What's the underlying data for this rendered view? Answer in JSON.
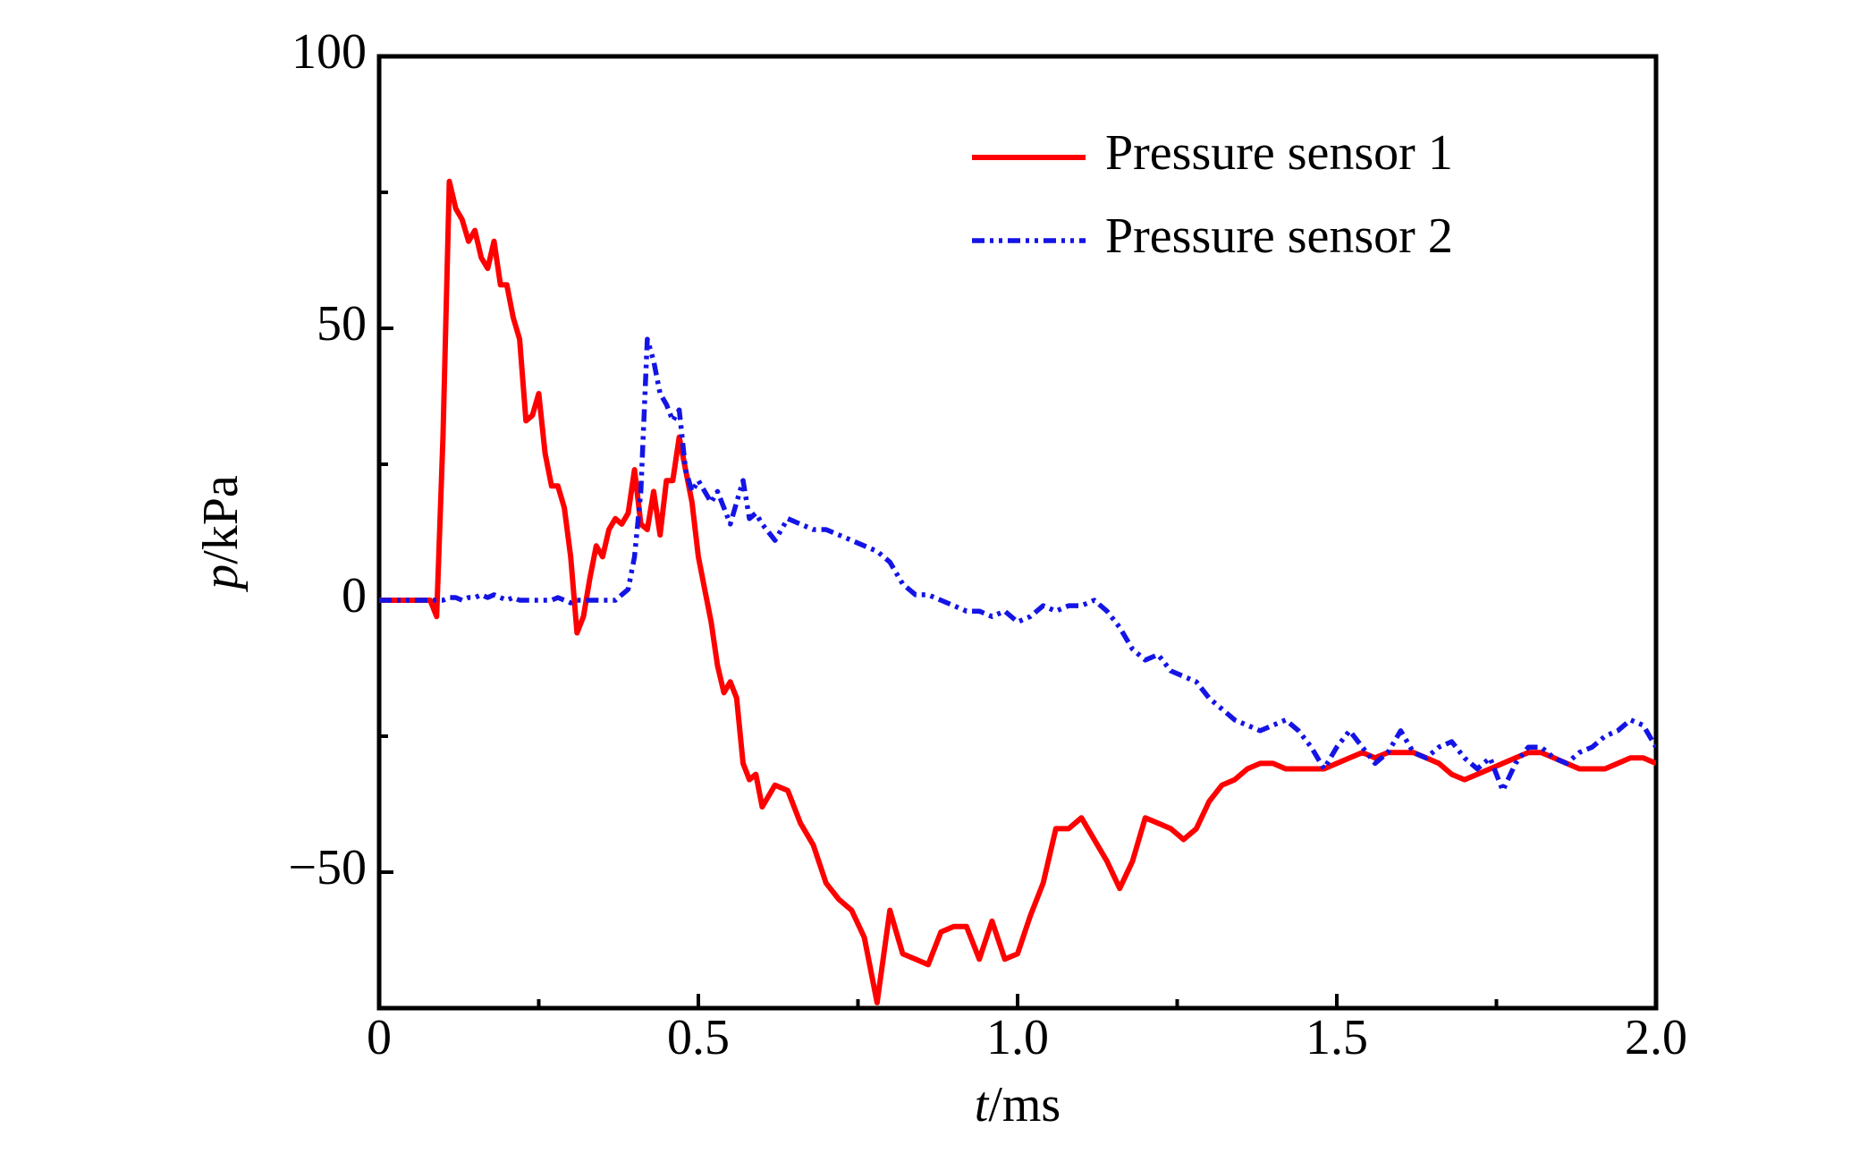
{
  "chart_data": {
    "type": "line",
    "xlabel": "t/ms",
    "ylabel": "p/kPa",
    "x": [
      0,
      0.01,
      0.02,
      0.03,
      0.04,
      0.05,
      0.06,
      0.07,
      0.08,
      0.09,
      0.1,
      0.11,
      0.12,
      0.13,
      0.14,
      0.15,
      0.16,
      0.17,
      0.18,
      0.19,
      0.2,
      0.21,
      0.22,
      0.23,
      0.24,
      0.25,
      0.26,
      0.27,
      0.28,
      0.29,
      0.3,
      0.31,
      0.32,
      0.33,
      0.34,
      0.35,
      0.36,
      0.37,
      0.38,
      0.39,
      0.4,
      0.41,
      0.42,
      0.43,
      0.44,
      0.45,
      0.46,
      0.47,
      0.48,
      0.49,
      0.5,
      0.51,
      0.52,
      0.53,
      0.54,
      0.55,
      0.56,
      0.57,
      0.58,
      0.59,
      0.6,
      0.62,
      0.64,
      0.66,
      0.68,
      0.7,
      0.72,
      0.74,
      0.76,
      0.78,
      0.8,
      0.82,
      0.84,
      0.86,
      0.88,
      0.9,
      0.92,
      0.94,
      0.96,
      0.98,
      1.0,
      1.02,
      1.04,
      1.06,
      1.08,
      1.1,
      1.12,
      1.14,
      1.16,
      1.18,
      1.2,
      1.22,
      1.24,
      1.26,
      1.28,
      1.3,
      1.32,
      1.34,
      1.36,
      1.38,
      1.4,
      1.42,
      1.44,
      1.46,
      1.48,
      1.5,
      1.52,
      1.54,
      1.56,
      1.58,
      1.6,
      1.62,
      1.64,
      1.66,
      1.68,
      1.7,
      1.72,
      1.74,
      1.76,
      1.78,
      1.8,
      1.82,
      1.84,
      1.86,
      1.88,
      1.9,
      1.92,
      1.94,
      1.96,
      1.98,
      2.0
    ],
    "series": [
      {
        "name": "Pressure sensor 1",
        "color": "#ff0000",
        "dash": "solid",
        "values": [
          0,
          0,
          0,
          0,
          0,
          0,
          0,
          0,
          0,
          -3,
          30,
          77,
          72,
          70,
          66,
          68,
          63,
          61,
          66,
          58,
          58,
          52,
          48,
          33,
          34,
          38,
          27,
          21,
          21,
          17,
          8,
          -6,
          -3,
          4,
          10,
          8,
          13,
          15,
          14,
          16,
          24,
          14,
          13,
          20,
          12,
          22,
          22,
          30,
          24,
          18,
          8,
          2,
          -4,
          -12,
          -17,
          -15,
          -18,
          -30,
          -33,
          -32,
          -38,
          -34,
          -35,
          -41,
          -45,
          -52,
          -55,
          -57,
          -62,
          -74,
          -57,
          -65,
          -66,
          -67,
          -61,
          -60,
          -60,
          -66,
          -59,
          -66,
          -65,
          -58,
          -52,
          -42,
          -42,
          -40,
          -44,
          -48,
          -53,
          -48,
          -40,
          -41,
          -42,
          -44,
          -42,
          -37,
          -34,
          -33,
          -31,
          -30,
          -30,
          -31,
          -31,
          -31,
          -31,
          -30,
          -29,
          -28,
          -29,
          -28,
          -28,
          -28,
          -29,
          -30,
          -32,
          -33,
          -32,
          -31,
          -30,
          -29,
          -28,
          -28,
          -29,
          -30,
          -31,
          -31,
          -31,
          -30,
          -29,
          -29,
          -30
        ]
      },
      {
        "name": "Pressure sensor 2",
        "color": "#1414e6",
        "dash": "dashdotdot",
        "values": [
          0,
          0,
          0,
          0,
          0,
          0,
          0,
          0,
          0,
          0,
          0,
          0.5,
          0.5,
          0,
          0.5,
          0.5,
          1,
          0.5,
          1,
          0.5,
          0,
          0.5,
          0,
          0,
          0,
          0,
          0,
          0,
          0.5,
          0,
          -0.5,
          0,
          0,
          0,
          0,
          0,
          0,
          0,
          1,
          2,
          8,
          20,
          48,
          44,
          38,
          36,
          33,
          35,
          24,
          20,
          22,
          20,
          18,
          20,
          17,
          14,
          18,
          22,
          15,
          16,
          14,
          11,
          15,
          14,
          13,
          13,
          12,
          11,
          10,
          9,
          7,
          3,
          1,
          1,
          0,
          -1,
          -2,
          -2,
          -3,
          -2,
          -4,
          -3,
          -1,
          -2,
          -1,
          -1,
          0,
          -2,
          -5,
          -9,
          -11,
          -10,
          -13,
          -14,
          -15,
          -18,
          -20,
          -22,
          -23,
          -24,
          -23,
          -22,
          -24,
          -27,
          -31,
          -27,
          -24,
          -27,
          -30,
          -28,
          -24,
          -28,
          -29,
          -27,
          -26,
          -29,
          -31,
          -29,
          -35,
          -30,
          -27,
          -27,
          -29,
          -30,
          -28,
          -27,
          -25,
          -24,
          -22,
          -23,
          -27
        ]
      }
    ],
    "xlim": [
      0,
      2.0
    ],
    "xticks": [
      0,
      0.5,
      {
        "value": 1,
        "label": "1.0"
      },
      1.5,
      {
        "value": 2,
        "label": "2.0"
      }
    ],
    "xminorticks": [
      0.25,
      0.75,
      1.25,
      1.75
    ],
    "ylim": [
      -75,
      100
    ],
    "yticks": [
      {
        "value": -50,
        "label": "−50"
      },
      0,
      50,
      100
    ],
    "yminorticks": [
      -25,
      25,
      75
    ],
    "legend": "upper right",
    "grid": false
  }
}
